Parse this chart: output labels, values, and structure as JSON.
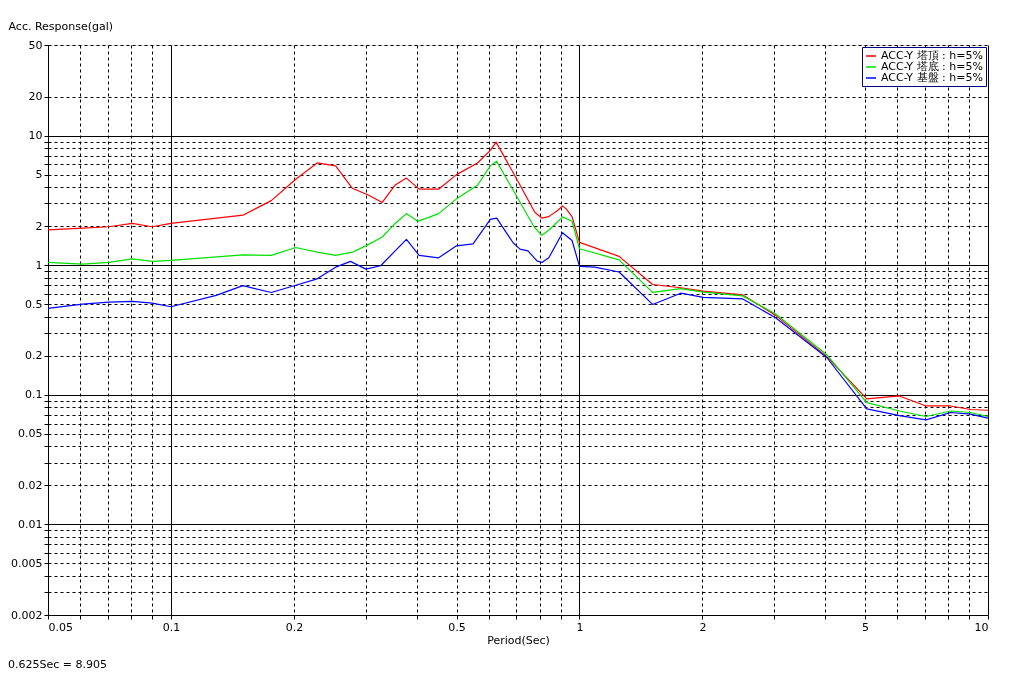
{
  "chart_data": {
    "type": "line",
    "xlabel": "Period(Sec)",
    "ylabel": "Acc. Response(gal)",
    "log": "xy",
    "grid": true,
    "legend": "top right",
    "marker": "none",
    "line_style": "solid",
    "xlim": [
      0.05,
      10
    ],
    "ylim": [
      0.002,
      50
    ],
    "xticks": [
      0.05,
      {
        "value": 0.06,
        "label": null
      },
      {
        "value": 0.07,
        "label": null
      },
      {
        "value": 0.08,
        "label": null
      },
      {
        "value": 0.09,
        "label": null
      },
      0.1,
      0.2,
      {
        "value": 0.3,
        "label": null
      },
      {
        "value": 0.4,
        "label": null
      },
      0.5,
      {
        "value": 0.6,
        "label": null
      },
      {
        "value": 0.7,
        "label": null
      },
      {
        "value": 0.8,
        "label": null
      },
      {
        "value": 0.9,
        "label": null
      },
      1,
      2,
      {
        "value": 3,
        "label": null
      },
      {
        "value": 4,
        "label": null
      },
      5,
      {
        "value": 6,
        "label": null
      },
      {
        "value": 7,
        "label": null
      },
      {
        "value": 8,
        "label": null
      },
      {
        "value": 9,
        "label": null
      },
      10
    ],
    "yticks": [
      0.002,
      {
        "value": 0.003,
        "label": null
      },
      {
        "value": 0.004,
        "label": null
      },
      0.005,
      {
        "value": 0.006,
        "label": null
      },
      {
        "value": 0.007,
        "label": null
      },
      {
        "value": 0.008,
        "label": null
      },
      {
        "value": 0.009,
        "label": null
      },
      0.01,
      0.02,
      {
        "value": 0.03,
        "label": null
      },
      {
        "value": 0.04,
        "label": null
      },
      0.05,
      {
        "value": 0.06,
        "label": null
      },
      {
        "value": 0.07,
        "label": null
      },
      {
        "value": 0.08,
        "label": null
      },
      {
        "value": 0.09,
        "label": null
      },
      0.1,
      0.2,
      {
        "value": 0.3,
        "label": null
      },
      {
        "value": 0.4,
        "label": null
      },
      0.5,
      {
        "value": 0.6,
        "label": null
      },
      {
        "value": 0.7,
        "label": null
      },
      {
        "value": 0.8,
        "label": null
      },
      {
        "value": 0.9,
        "label": null
      },
      1,
      2,
      {
        "value": 3,
        "label": null
      },
      {
        "value": 4,
        "label": null
      },
      5,
      {
        "value": 6,
        "label": null
      },
      {
        "value": 7,
        "label": null
      },
      {
        "value": 8,
        "label": null
      },
      {
        "value": 9,
        "label": null
      },
      10,
      20,
      50
    ],
    "annotations": [
      "0.625Sec = 8.905"
    ],
    "series": [
      {
        "name": "ACC-Y 塔頂 : h=5%",
        "color": "#ff0000",
        "x": [
          0.05,
          0.0607,
          0.0705,
          0.0804,
          0.09,
          0.1,
          0.15,
          0.176,
          0.202,
          0.228,
          0.253,
          0.278,
          0.304,
          0.329,
          0.354,
          0.377,
          0.405,
          0.452,
          0.5,
          0.563,
          0.605,
          0.625,
          0.696,
          0.778,
          0.809,
          0.841,
          0.884,
          0.909,
          0.93,
          0.959,
          1.0,
          1.25,
          1.51,
          1.77,
          2.01,
          2.51,
          3.02,
          4.03,
          5.05,
          6.07,
          7.05,
          8.1,
          9.05,
          10
        ],
        "values": [
          1.87,
          1.93,
          1.98,
          2.1,
          1.98,
          2.1,
          2.43,
          3.15,
          4.6,
          6.15,
          5.84,
          3.92,
          3.48,
          3.05,
          4.16,
          4.7,
          3.86,
          3.86,
          5.0,
          6.15,
          7.7,
          8.905,
          4.86,
          2.55,
          2.31,
          2.37,
          2.64,
          2.87,
          2.7,
          2.37,
          1.5,
          1.17,
          0.71,
          0.67,
          0.63,
          0.59,
          0.41,
          0.197,
          0.093,
          0.098,
          0.082,
          0.082,
          0.077,
          0.076
        ]
      },
      {
        "name": "ACC-Y 塔底 : h=5%",
        "color": "#00e000",
        "x": [
          0.05,
          0.0607,
          0.0705,
          0.0804,
          0.09,
          0.1,
          0.15,
          0.176,
          0.202,
          0.228,
          0.253,
          0.278,
          0.3,
          0.329,
          0.354,
          0.377,
          0.402,
          0.452,
          0.5,
          0.563,
          0.605,
          0.627,
          0.696,
          0.774,
          0.809,
          0.841,
          0.909,
          0.959,
          1.0,
          1.25,
          1.51,
          1.77,
          2.01,
          2.51,
          3.02,
          4.03,
          5.05,
          6.07,
          7.05,
          8.1,
          9.05,
          10
        ],
        "values": [
          1.05,
          1.02,
          1.05,
          1.12,
          1.07,
          1.09,
          1.2,
          1.19,
          1.37,
          1.26,
          1.19,
          1.26,
          1.41,
          1.65,
          2.1,
          2.5,
          2.18,
          2.5,
          3.25,
          4.14,
          5.84,
          6.33,
          3.56,
          1.98,
          1.7,
          1.86,
          2.36,
          2.18,
          1.34,
          1.1,
          0.617,
          0.66,
          0.62,
          0.58,
          0.42,
          0.204,
          0.087,
          0.075,
          0.068,
          0.075,
          0.073,
          0.068
        ]
      },
      {
        "name": "ACC-Y 基盤 : h=5%",
        "color": "#0000ff",
        "x": [
          0.05,
          0.0607,
          0.0705,
          0.0804,
          0.09,
          0.1,
          0.129,
          0.15,
          0.176,
          0.202,
          0.228,
          0.253,
          0.275,
          0.3,
          0.326,
          0.377,
          0.405,
          0.452,
          0.5,
          0.549,
          0.605,
          0.627,
          0.688,
          0.715,
          0.748,
          0.787,
          0.809,
          0.841,
          0.909,
          0.959,
          1.0,
          1.09,
          1.25,
          1.51,
          1.77,
          2.01,
          2.51,
          3.02,
          4.03,
          5.05,
          6.07,
          7.05,
          8.1,
          9.05,
          10
        ],
        "values": [
          0.464,
          0.5,
          0.518,
          0.525,
          0.51,
          0.478,
          0.585,
          0.695,
          0.616,
          0.7,
          0.785,
          0.966,
          1.07,
          0.933,
          0.99,
          1.58,
          1.19,
          1.14,
          1.41,
          1.46,
          2.26,
          2.31,
          1.49,
          1.33,
          1.29,
          1.08,
          1.05,
          1.14,
          1.78,
          1.55,
          0.98,
          0.965,
          0.886,
          0.498,
          0.608,
          0.565,
          0.549,
          0.393,
          0.194,
          0.078,
          0.069,
          0.064,
          0.073,
          0.071,
          0.066
        ]
      }
    ]
  }
}
